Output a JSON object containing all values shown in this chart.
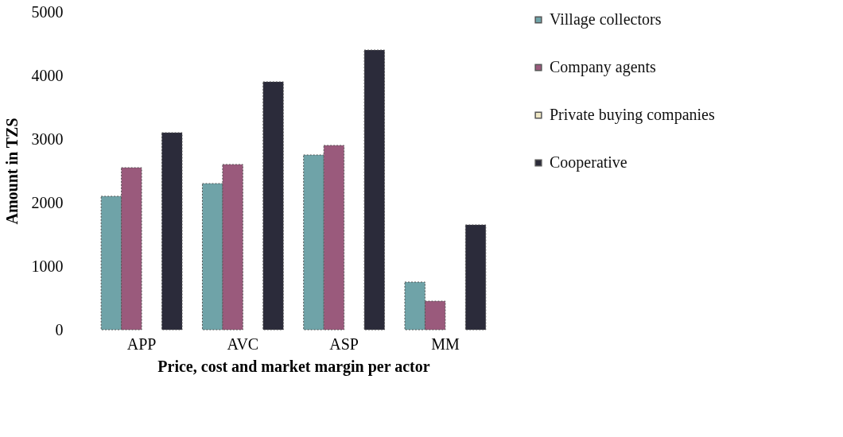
{
  "chart_data": {
    "type": "bar",
    "xlabel": "Price, cost and market margin per actor",
    "ylabel": "Amount in TZS",
    "categories": [
      "APP",
      "AVC",
      "ASP",
      "MM"
    ],
    "series": [
      {
        "name": "Village collectors",
        "color": "#6fa3a8",
        "values": [
          2100,
          2300,
          2750,
          750
        ]
      },
      {
        "name": "Company agents",
        "color": "#9a5a7c",
        "values": [
          2550,
          2600,
          2900,
          450
        ]
      },
      {
        "name": "Private buying companies",
        "color": "#efe7c4",
        "values": [
          null,
          null,
          null,
          null
        ]
      },
      {
        "name": "Cooperative",
        "color": "#2b2b3a",
        "values": [
          3100,
          3900,
          4400,
          1650
        ]
      }
    ],
    "ylim": [
      0,
      5000
    ],
    "yticks": [
      0,
      1000,
      2000,
      3000,
      4000,
      5000
    ],
    "grid": false,
    "legend": "right"
  }
}
